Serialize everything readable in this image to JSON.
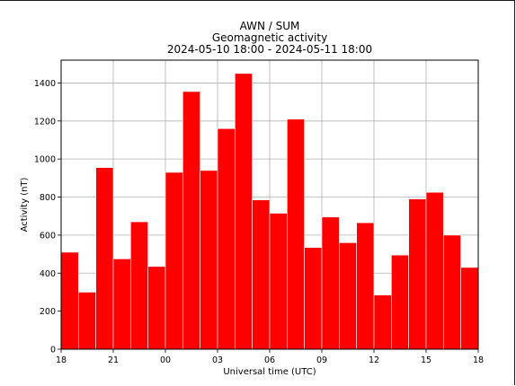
{
  "chart_data": {
    "type": "bar",
    "title_lines": [
      "AWN / SUM",
      "Geomagnetic activity",
      "2024-05-10 18:00 - 2024-05-11 18:00"
    ],
    "xlabel": "Universal time (UTC)",
    "ylabel": "Activity (nT)",
    "x_start_hour": 18,
    "x_range_hours": [
      0,
      24
    ],
    "ylim": [
      0,
      1520
    ],
    "grid": true,
    "bar_color": "#ff0000",
    "bar_edge_color": "#ffffff",
    "x_ticks": [
      {
        "pos": 0,
        "label": "18"
      },
      {
        "pos": 3,
        "label": "21"
      },
      {
        "pos": 6,
        "label": "00"
      },
      {
        "pos": 9,
        "label": "03"
      },
      {
        "pos": 12,
        "label": "06"
      },
      {
        "pos": 15,
        "label": "09"
      },
      {
        "pos": 18,
        "label": "12"
      },
      {
        "pos": 21,
        "label": "15"
      },
      {
        "pos": 24,
        "label": "18"
      }
    ],
    "y_ticks": [
      {
        "value": 0,
        "label": "0"
      },
      {
        "value": 200,
        "label": "200"
      },
      {
        "value": 400,
        "label": "400"
      },
      {
        "value": 600,
        "label": "600"
      },
      {
        "value": 800,
        "label": "800"
      },
      {
        "value": 1000,
        "label": "1000"
      },
      {
        "value": 1200,
        "label": "1200"
      },
      {
        "value": 1400,
        "label": "1400"
      }
    ],
    "values": [
      510,
      300,
      955,
      475,
      670,
      435,
      930,
      1355,
      940,
      1160,
      1450,
      785,
      715,
      1210,
      535,
      695,
      560,
      665,
      285,
      495,
      790,
      825,
      600,
      430
    ]
  }
}
